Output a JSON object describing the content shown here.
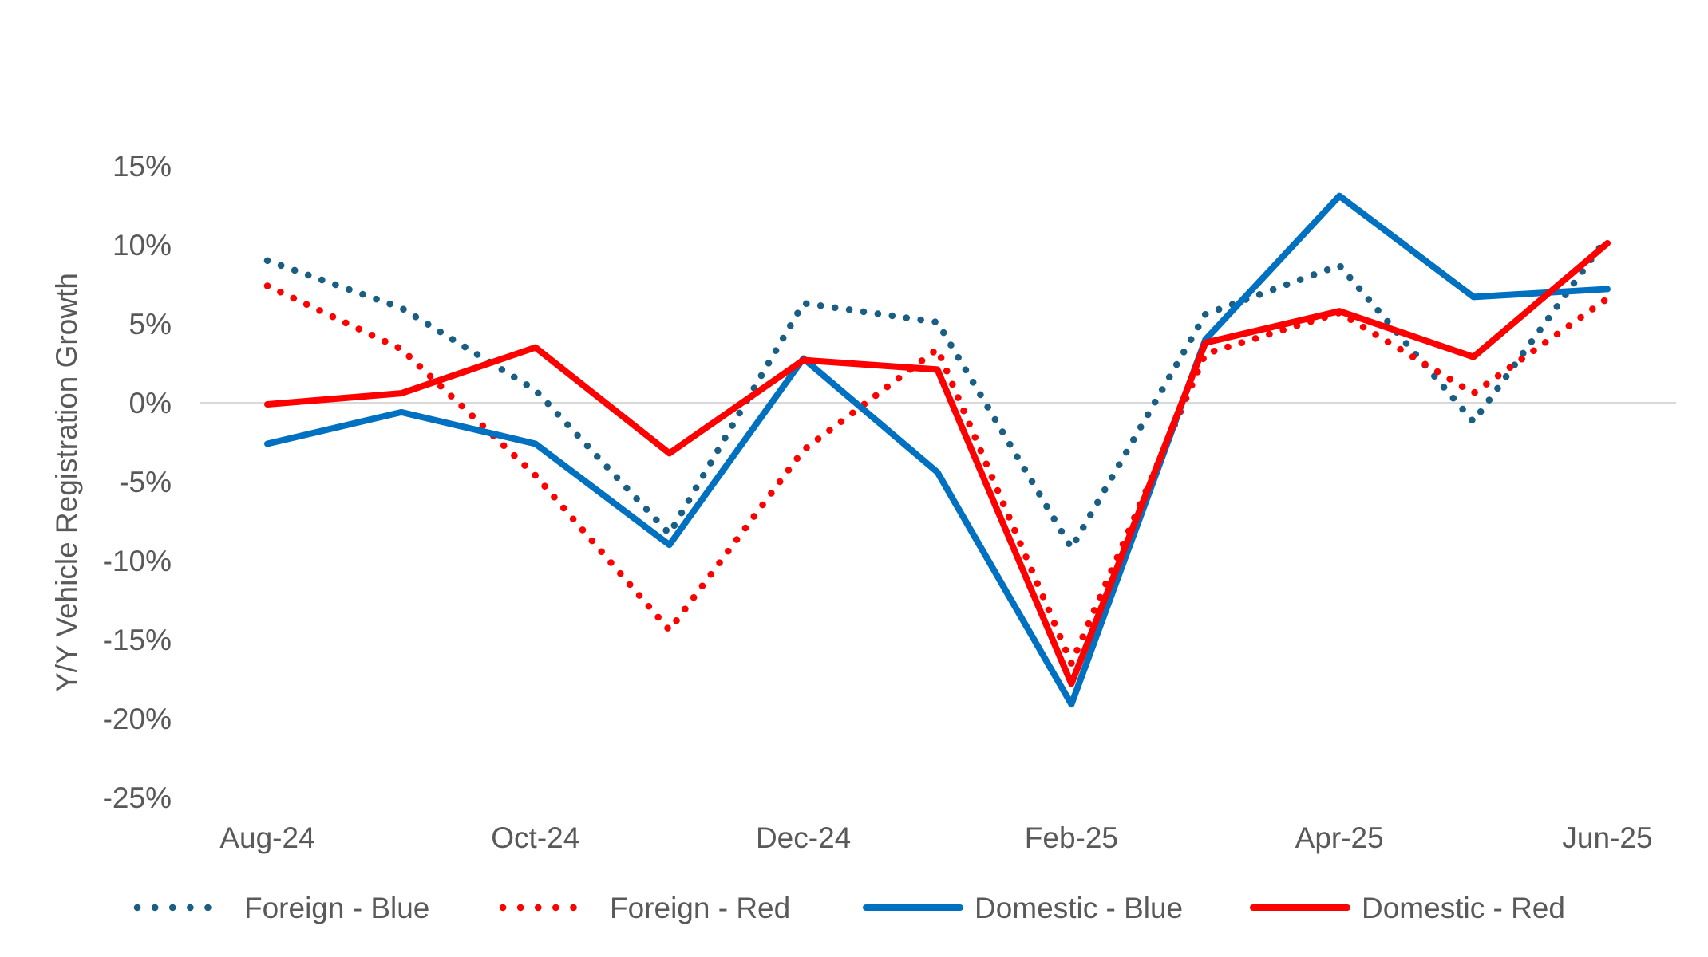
{
  "chart_data": {
    "type": "line",
    "title": "",
    "xlabel": "",
    "ylabel": "Y/Y Vehicle Registration Growth",
    "ylim": [
      -25,
      15
    ],
    "yticks": [
      15,
      10,
      5,
      0,
      -5,
      -10,
      -15,
      -20,
      -25
    ],
    "ytick_labels": [
      "15%",
      "10%",
      "5%",
      "0%",
      "-5%",
      "-10%",
      "-15%",
      "-20%",
      "-25%"
    ],
    "x": [
      "Aug-24",
      "Sep-24",
      "Oct-24",
      "Nov-24",
      "Dec-24",
      "Jan-25",
      "Feb-25",
      "Mar-25",
      "Apr-25",
      "May-25",
      "Jun-25"
    ],
    "xtick_labels": [
      "Aug-24",
      "Oct-24",
      "Dec-24",
      "Feb-25",
      "Apr-25",
      "Jun-25"
    ],
    "grid": "zero-line only",
    "legend_position": "bottom",
    "series": [
      {
        "name": "Foreign - Blue",
        "color": "#1B5E84",
        "style": "dotted",
        "values": [
          9.0,
          6.0,
          0.8,
          -8.3,
          6.3,
          5.1,
          -9.2,
          5.6,
          8.7,
          -1.2,
          10.5
        ]
      },
      {
        "name": "Foreign - Red",
        "color": "#FF0000",
        "style": "dotted",
        "values": [
          7.4,
          3.4,
          -4.6,
          -14.4,
          -3.0,
          3.4,
          -16.5,
          3.1,
          5.7,
          0.6,
          6.6
        ]
      },
      {
        "name": "Domestic - Blue",
        "color": "#0070C0",
        "style": "solid",
        "values": [
          -2.6,
          -0.6,
          -2.6,
          -9.0,
          2.8,
          -4.4,
          -19.1,
          4.0,
          13.1,
          6.7,
          7.2
        ]
      },
      {
        "name": "Domestic - Red",
        "color": "#FF0000",
        "style": "solid",
        "values": [
          -0.1,
          0.6,
          3.5,
          -3.2,
          2.7,
          2.1,
          -17.8,
          3.8,
          5.8,
          2.9,
          10.1
        ]
      }
    ]
  }
}
